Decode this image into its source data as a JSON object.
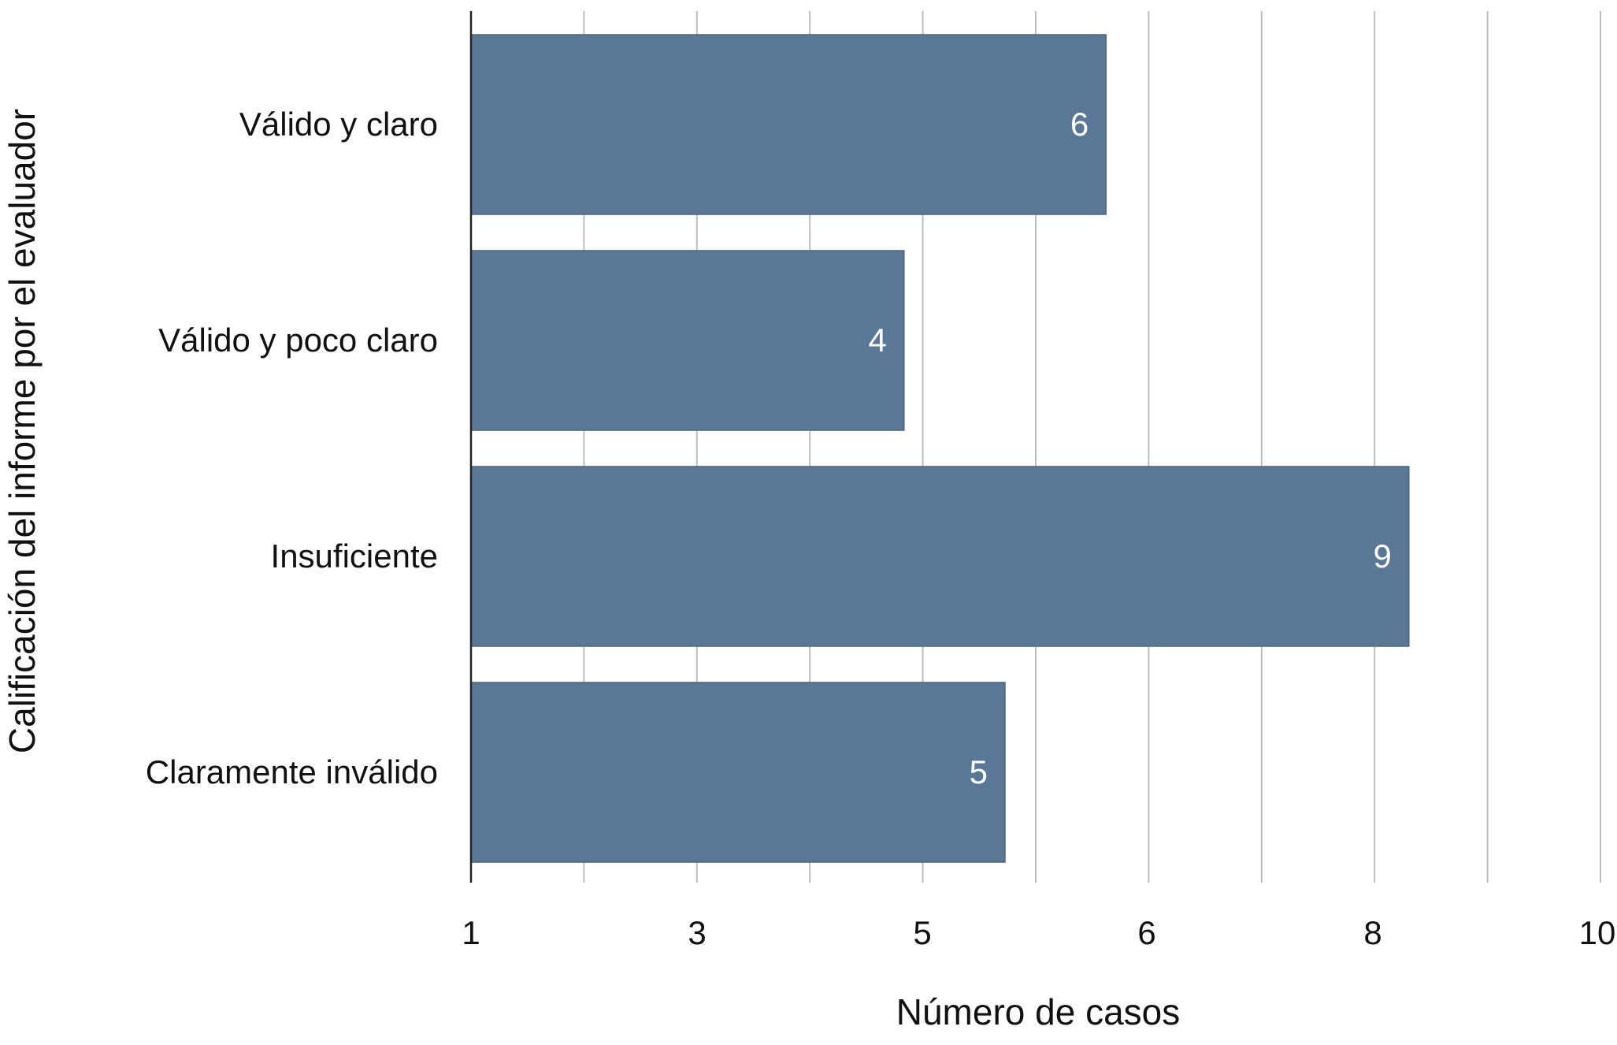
{
  "chart_data": {
    "type": "bar",
    "orientation": "horizontal",
    "categories": [
      "Válido y claro",
      "Válido y poco claro",
      "Insuficiente",
      "Claramente inválido"
    ],
    "values": [
      6,
      4,
      9,
      5
    ],
    "data_labels": [
      "6",
      "4",
      "9",
      "5"
    ],
    "xlabel": "Número de casos",
    "ylabel": "Calificación del informe por el evaluador",
    "x_ticks": [
      "1",
      "3",
      "5",
      "6",
      "8",
      "10"
    ],
    "xlim": [
      1,
      10
    ],
    "grid": true,
    "legend": "none",
    "colors": {
      "bar": "#5a7896",
      "grid": "#bdbdbd",
      "label_text": "#ffffff"
    }
  }
}
